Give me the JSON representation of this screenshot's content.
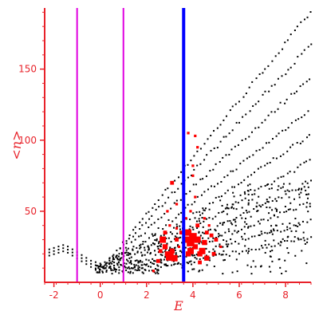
{
  "chart_data": {
    "type": "scatter",
    "title": "",
    "xlabel": "E",
    "ylabel": "<n>",
    "xlim": [
      -2.4,
      9.1
    ],
    "ylim": [
      0,
      193
    ],
    "xticks": [
      -2,
      0,
      2,
      4,
      6,
      8
    ],
    "yticks": [
      50,
      100,
      150
    ],
    "grid": false,
    "legend": "none",
    "colors": {
      "axes": "#e8222a",
      "black_points": "#000000",
      "red_points": "#ff0000",
      "magenta_lines": "#e000e0",
      "blue_line": "#0000ff"
    },
    "vertical_lines": [
      {
        "x": -1,
        "color": "#e000e0"
      },
      {
        "x": 1,
        "color": "#e000e0"
      },
      {
        "x": 3.6,
        "color": "#0000ff"
      }
    ],
    "black_bands": [
      {
        "x_start": 0.0,
        "x_end": 9.1,
        "y_start": 8,
        "slope": 20.0
      },
      {
        "x_start": 0.0,
        "x_end": 9.1,
        "y_start": 8,
        "slope": 17.5
      },
      {
        "x_start": 0.1,
        "x_end": 9.1,
        "y_start": 8,
        "slope": 15.2
      },
      {
        "x_start": 0.3,
        "x_end": 9.1,
        "y_start": 8,
        "slope": 13.0
      },
      {
        "x_start": 0.5,
        "x_end": 9.1,
        "y_start": 8,
        "slope": 11.2
      },
      {
        "x_start": 0.8,
        "x_end": 9.1,
        "y_start": 8,
        "slope": 9.4
      },
      {
        "x_start": 1.0,
        "x_end": 9.1,
        "y_start": 8,
        "slope": 7.7
      },
      {
        "x_start": 1.2,
        "x_end": 9.1,
        "y_start": 8,
        "slope": 6.1
      },
      {
        "x_start": 1.5,
        "x_end": 9.1,
        "y_start": 8,
        "slope": 4.6
      },
      {
        "x_start": 1.8,
        "x_end": 9.1,
        "y_start": 8,
        "slope": 3.2
      }
    ],
    "black_curve_left": [
      [
        -2.4,
        20
      ],
      [
        -2.2,
        21
      ],
      [
        -2.0,
        22
      ],
      [
        -1.8,
        23
      ],
      [
        -1.6,
        24
      ],
      [
        -1.4,
        23
      ],
      [
        -1.2,
        21
      ],
      [
        -1.0,
        19
      ],
      [
        -0.8,
        17
      ],
      [
        -0.6,
        15
      ],
      [
        -0.4,
        13
      ],
      [
        -0.2,
        12
      ],
      [
        0.0,
        11
      ],
      [
        0.2,
        12
      ],
      [
        0.4,
        13
      ],
      [
        0.6,
        14
      ],
      [
        0.8,
        16
      ],
      [
        1.0,
        18
      ]
    ],
    "red_points": [
      [
        3.1,
        70,
        3
      ],
      [
        3.3,
        55,
        2
      ],
      [
        2.9,
        50,
        2
      ],
      [
        3.0,
        40,
        2
      ],
      [
        2.8,
        35,
        3
      ],
      [
        2.7,
        30,
        5
      ],
      [
        2.8,
        25,
        4
      ],
      [
        2.9,
        20,
        4
      ],
      [
        3.0,
        18,
        6
      ],
      [
        3.1,
        22,
        4
      ],
      [
        3.2,
        17,
        5
      ],
      [
        3.3,
        30,
        3
      ],
      [
        3.4,
        25,
        2
      ],
      [
        3.5,
        35,
        3
      ],
      [
        2.6,
        22,
        3
      ],
      [
        3.7,
        30,
        5
      ],
      [
        3.8,
        35,
        5
      ],
      [
        3.9,
        28,
        6
      ],
      [
        4.0,
        32,
        6
      ],
      [
        4.1,
        25,
        4
      ],
      [
        4.2,
        30,
        5
      ],
      [
        4.3,
        20,
        4
      ],
      [
        4.4,
        22,
        5
      ],
      [
        3.8,
        20,
        4
      ],
      [
        3.9,
        22,
        5
      ],
      [
        4.5,
        28,
        4
      ],
      [
        4.6,
        35,
        3
      ],
      [
        4.7,
        40,
        2
      ],
      [
        4.8,
        33,
        3
      ],
      [
        5.0,
        30,
        3
      ],
      [
        5.2,
        25,
        2
      ],
      [
        3.7,
        45,
        2
      ],
      [
        3.9,
        50,
        2
      ],
      [
        4.1,
        60,
        2
      ],
      [
        4.0,
        82,
        2
      ],
      [
        4.2,
        95,
        2
      ],
      [
        4.1,
        103,
        2
      ],
      [
        3.8,
        105,
        2
      ],
      [
        4.0,
        75,
        2
      ],
      [
        4.2,
        40,
        3
      ],
      [
        4.5,
        45,
        2
      ],
      [
        3.6,
        60,
        2
      ],
      [
        3.3,
        38,
        2
      ],
      [
        2.5,
        15,
        3
      ],
      [
        2.3,
        8,
        2
      ],
      [
        4.3,
        14,
        3
      ],
      [
        4.6,
        17,
        4
      ],
      [
        4.9,
        20,
        3
      ]
    ]
  }
}
